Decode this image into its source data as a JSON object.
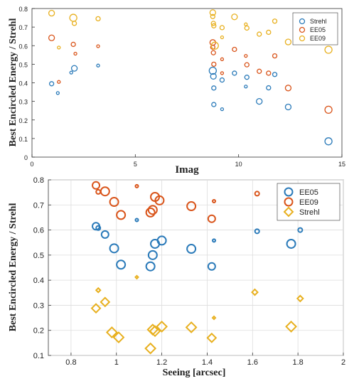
{
  "colors": {
    "blue": "#2a7ab9",
    "orange": "#d9541a",
    "yellow": "#e8b01f",
    "grid": "#dddddd",
    "axis": "#333333"
  },
  "chart_data": [
    {
      "type": "scatter",
      "title": "",
      "xlabel": "Imag",
      "ylabel": "Best Encircled Energy / Strehl",
      "xlim": [
        0,
        15
      ],
      "ylim": [
        0,
        0.8
      ],
      "xticks": [
        "0",
        "5",
        "10",
        "15"
      ],
      "yticks": [
        "0",
        "0.1",
        "0.2",
        "0.3",
        "0.4",
        "0.5",
        "0.6",
        "0.7",
        "0.8"
      ],
      "grid": false,
      "legend": "top-right",
      "marker": "circle",
      "series": [
        {
          "name": "Strehl",
          "color": "#2a7ab9",
          "points": [
            [
              0.95,
              0.395,
              3
            ],
            [
              1.25,
              0.345,
              2
            ],
            [
              1.9,
              0.455,
              2
            ],
            [
              2.05,
              0.478,
              4
            ],
            [
              3.2,
              0.493,
              2
            ],
            [
              8.75,
              0.465,
              5
            ],
            [
              8.78,
              0.435,
              4
            ],
            [
              8.8,
              0.372,
              3
            ],
            [
              8.8,
              0.283,
              3
            ],
            [
              9.2,
              0.258,
              2
            ],
            [
              9.2,
              0.415,
              3
            ],
            [
              9.8,
              0.452,
              3
            ],
            [
              10.35,
              0.38,
              2
            ],
            [
              10.4,
              0.43,
              3
            ],
            [
              11.0,
              0.3,
              4
            ],
            [
              11.45,
              0.373,
              3
            ],
            [
              11.75,
              0.445,
              3
            ],
            [
              12.4,
              0.27,
              4
            ],
            [
              14.35,
              0.085,
              5
            ]
          ]
        },
        {
          "name": "EE05",
          "color": "#d9541a",
          "points": [
            [
              0.95,
              0.642,
              4
            ],
            [
              1.3,
              0.405,
              2
            ],
            [
              2.0,
              0.607,
              3
            ],
            [
              2.1,
              0.557,
              2
            ],
            [
              3.2,
              0.597,
              2
            ],
            [
              8.75,
              0.617,
              4
            ],
            [
              8.75,
              0.592,
              3
            ],
            [
              8.78,
              0.562,
              3
            ],
            [
              8.8,
              0.5,
              3
            ],
            [
              9.2,
              0.527,
              2
            ],
            [
              9.2,
              0.452,
              2
            ],
            [
              9.8,
              0.58,
              3
            ],
            [
              10.35,
              0.545,
              2
            ],
            [
              10.4,
              0.497,
              3
            ],
            [
              11.0,
              0.462,
              3
            ],
            [
              11.45,
              0.452,
              3
            ],
            [
              11.75,
              0.545,
              3
            ],
            [
              12.4,
              0.372,
              4
            ],
            [
              14.35,
              0.255,
              5
            ]
          ]
        },
        {
          "name": "EE09",
          "color": "#e8b01f",
          "points": [
            [
              0.95,
              0.775,
              4
            ],
            [
              1.3,
              0.59,
              2
            ],
            [
              2.0,
              0.75,
              5
            ],
            [
              2.05,
              0.72,
              3
            ],
            [
              3.2,
              0.745,
              3
            ],
            [
              8.75,
              0.778,
              4
            ],
            [
              8.75,
              0.757,
              3
            ],
            [
              8.78,
              0.72,
              3
            ],
            [
              8.8,
              0.707,
              3
            ],
            [
              8.85,
              0.6,
              5
            ],
            [
              9.2,
              0.697,
              3
            ],
            [
              9.2,
              0.645,
              2
            ],
            [
              9.8,
              0.755,
              4
            ],
            [
              10.35,
              0.715,
              2
            ],
            [
              10.4,
              0.695,
              3
            ],
            [
              11.0,
              0.662,
              3
            ],
            [
              11.45,
              0.672,
              3
            ],
            [
              11.75,
              0.732,
              3
            ],
            [
              12.4,
              0.62,
              4
            ],
            [
              14.35,
              0.578,
              5
            ]
          ]
        }
      ]
    },
    {
      "type": "scatter",
      "title": "",
      "xlabel": "Seeing [arcsec]",
      "ylabel": "Best Encircled Energy / Strehl",
      "xlim": [
        0.7,
        2.0
      ],
      "ylim": [
        0.1,
        0.8
      ],
      "xticks": [
        "0.8",
        "1",
        "1.2",
        "1.4",
        "1.6",
        "1.8",
        "2"
      ],
      "yticks": [
        "0.1",
        "0.2",
        "0.3",
        "0.4",
        "0.5",
        "0.6",
        "0.7",
        "0.8"
      ],
      "grid": true,
      "legend": "top-right",
      "series": [
        {
          "name": "EE05",
          "color": "#2a7ab9",
          "marker": "circle",
          "points": [
            [
              0.91,
              0.615,
              5
            ],
            [
              0.92,
              0.608,
              3
            ],
            [
              0.95,
              0.582,
              5
            ],
            [
              0.99,
              0.527,
              6
            ],
            [
              1.02,
              0.462,
              6
            ],
            [
              1.09,
              0.64,
              2
            ],
            [
              1.15,
              0.455,
              6
            ],
            [
              1.16,
              0.5,
              6
            ],
            [
              1.17,
              0.545,
              6
            ],
            [
              1.2,
              0.558,
              6
            ],
            [
              1.33,
              0.525,
              6
            ],
            [
              1.42,
              0.455,
              5
            ],
            [
              1.43,
              0.558,
              2
            ],
            [
              1.62,
              0.595,
              3
            ],
            [
              1.77,
              0.545,
              6
            ],
            [
              1.81,
              0.6,
              3
            ]
          ]
        },
        {
          "name": "EE09",
          "color": "#d9541a",
          "marker": "circle",
          "points": [
            [
              0.91,
              0.778,
              5
            ],
            [
              0.92,
              0.752,
              3
            ],
            [
              0.95,
              0.754,
              6
            ],
            [
              0.99,
              0.712,
              6
            ],
            [
              1.02,
              0.66,
              6
            ],
            [
              1.09,
              0.775,
              2
            ],
            [
              1.15,
              0.67,
              6
            ],
            [
              1.16,
              0.68,
              6
            ],
            [
              1.17,
              0.732,
              6
            ],
            [
              1.19,
              0.718,
              6
            ],
            [
              1.33,
              0.695,
              6
            ],
            [
              1.42,
              0.645,
              5
            ],
            [
              1.43,
              0.715,
              2
            ],
            [
              1.62,
              0.745,
              3
            ]
          ]
        },
        {
          "name": "Strehl",
          "color": "#e8b01f",
          "marker": "diamond",
          "points": [
            [
              0.91,
              0.288,
              6
            ],
            [
              0.92,
              0.36,
              3
            ],
            [
              0.95,
              0.313,
              6
            ],
            [
              0.98,
              0.192,
              7
            ],
            [
              1.01,
              0.172,
              7
            ],
            [
              1.09,
              0.412,
              2
            ],
            [
              1.15,
              0.128,
              7
            ],
            [
              1.16,
              0.203,
              7
            ],
            [
              1.17,
              0.197,
              7
            ],
            [
              1.2,
              0.215,
              7
            ],
            [
              1.33,
              0.212,
              7
            ],
            [
              1.42,
              0.17,
              6
            ],
            [
              1.43,
              0.25,
              2
            ],
            [
              1.61,
              0.352,
              4
            ],
            [
              1.77,
              0.215,
              7
            ],
            [
              1.81,
              0.327,
              4
            ]
          ]
        }
      ]
    }
  ]
}
